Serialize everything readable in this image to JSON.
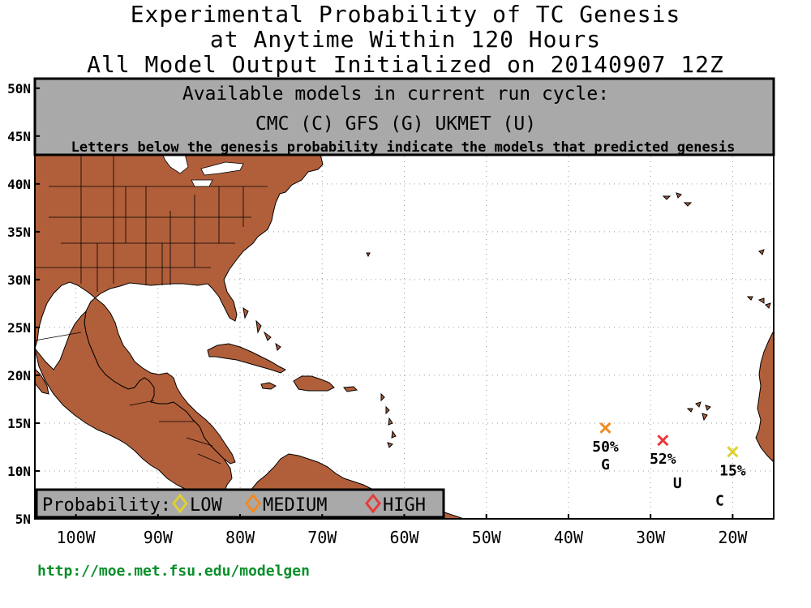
{
  "title": {
    "line1": "Experimental Probability of TC Genesis",
    "line2": "at Anytime Within 120 Hours",
    "line3": "All Model Output Initialized on 20140907 12Z"
  },
  "models_box": {
    "heading": "Available models in current run cycle:",
    "models": "CMC (C) GFS (G)  UKMET (U)",
    "note": "Letters below the genesis probability indicate the models that predicted genesis"
  },
  "legend": {
    "label": "Probability:",
    "items": [
      {
        "name": "LOW",
        "color": "#e0d030"
      },
      {
        "name": "MEDIUM",
        "color": "#f08a24"
      },
      {
        "name": "HIGH",
        "color": "#e83a3a"
      }
    ]
  },
  "lat_ticks": [
    "50N",
    "45N",
    "40N",
    "35N",
    "30N",
    "25N",
    "20N",
    "15N",
    "10N",
    "5N"
  ],
  "lon_ticks": [
    "100W",
    "90W",
    "80W",
    "70W",
    "60W",
    "50W",
    "40W",
    "30W",
    "20W"
  ],
  "markers": [
    {
      "lon": -35.5,
      "lat": 14.5,
      "prob": "50%",
      "models": "G",
      "level": "MEDIUM",
      "color": "#f08a24"
    },
    {
      "lon": -28.5,
      "lat": 13.2,
      "prob": "52%",
      "models": "U",
      "level": "HIGH",
      "color": "#e83a3a"
    },
    {
      "lon": -20.0,
      "lat": 12.0,
      "prob": "15%",
      "models": "C",
      "level": "LOW",
      "color": "#e0d030"
    }
  ],
  "url": "http://moe.met.fsu.edu/modelgen",
  "colors": {
    "land": "#b15f3a",
    "ocean": "#ffffff",
    "box": "#a9a9a9",
    "url": "#0a8f2a"
  }
}
